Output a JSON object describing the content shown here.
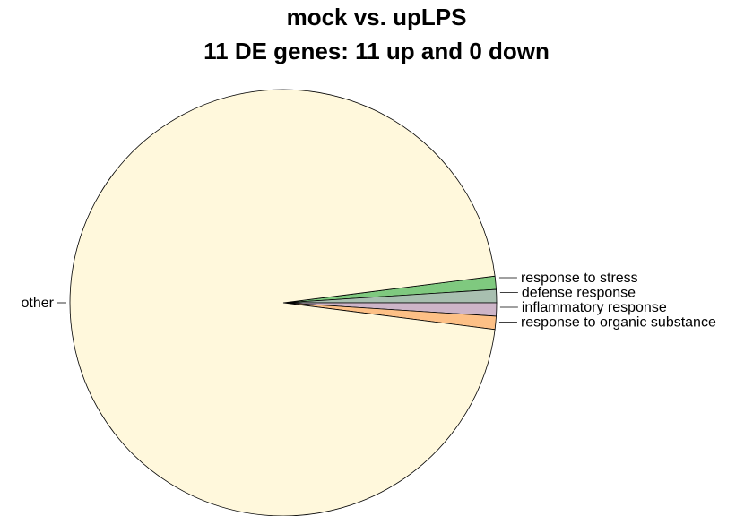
{
  "chart_data": {
    "type": "pie",
    "title": "mock vs. upLPS",
    "subtitle": "11 DE genes: 11 up and 0 down",
    "slices": [
      {
        "label": "response to stress",
        "value": 1,
        "color": "#7fc97f"
      },
      {
        "label": "defense response",
        "value": 1,
        "color": "#a8bfb0"
      },
      {
        "label": "inflammatory response",
        "value": 1,
        "color": "#cdb5c8"
      },
      {
        "label": "response to organic substance",
        "value": 1,
        "color": "#fdc086"
      },
      {
        "label": "other",
        "value": 96,
        "color": "#fff8dc"
      }
    ],
    "legend": "none"
  }
}
